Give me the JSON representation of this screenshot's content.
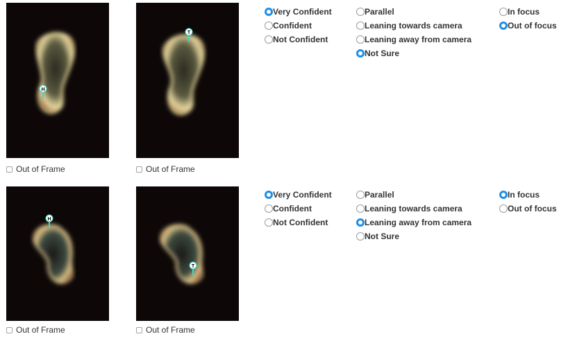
{
  "rows": [
    {
      "tiles": [
        {
          "marker_letter": "H",
          "out_of_frame_label": "Out of Frame"
        },
        {
          "marker_letter": "T",
          "out_of_frame_label": "Out of Frame"
        }
      ],
      "confidence": {
        "options": [
          "Very Confident",
          "Confident",
          "Not Confident"
        ],
        "selected": "Very Confident"
      },
      "orientation": {
        "options": [
          "Parallel",
          "Leaning towards camera",
          "Leaning away from camera",
          "Not Sure"
        ],
        "selected": "Not Sure"
      },
      "focus": {
        "options": [
          "In focus",
          "Out of focus"
        ],
        "selected": "Out of focus"
      }
    },
    {
      "tiles": [
        {
          "marker_letter": "H",
          "out_of_frame_label": "Out of Frame"
        },
        {
          "marker_letter": "T",
          "out_of_frame_label": "Out of Frame"
        }
      ],
      "confidence": {
        "options": [
          "Very Confident",
          "Confident",
          "Not Confident"
        ],
        "selected": "Very Confident"
      },
      "orientation": {
        "options": [
          "Parallel",
          "Leaning towards camera",
          "Leaning away from camera",
          "Not Sure"
        ],
        "selected": "Leaning away from camera"
      },
      "focus": {
        "options": [
          "In focus",
          "Out of focus"
        ],
        "selected": "In focus"
      }
    }
  ],
  "colors": {
    "radio_selected": "#1e8fe6",
    "marker": "#3fd6c8",
    "image_background": "#0d0807"
  }
}
